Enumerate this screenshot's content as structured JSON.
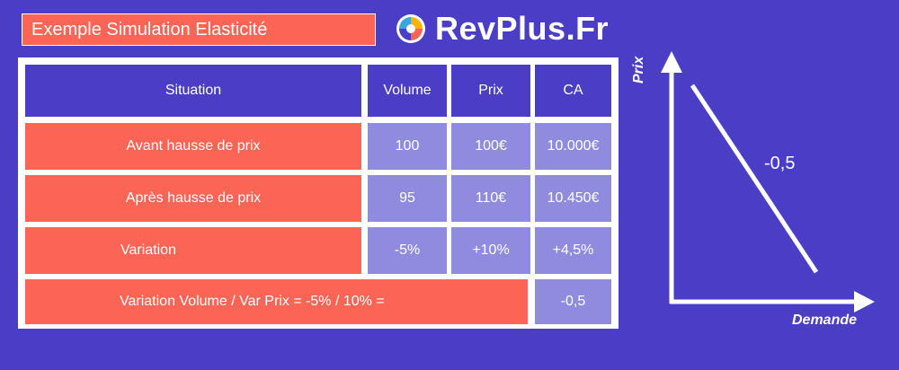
{
  "header": {
    "title": "Exemple Simulation Elasticité",
    "brand": "RevPlus.Fr"
  },
  "table": {
    "columns": [
      "Situation",
      "Volume",
      "Prix",
      "CA"
    ],
    "rows": [
      {
        "situation": "Avant hausse de prix",
        "volume": "100",
        "prix": "100€",
        "ca": "10.000€"
      },
      {
        "situation": "Après hausse de prix",
        "volume": "95",
        "prix": "110€",
        "ca": "10.450€"
      },
      {
        "situation": "Variation",
        "volume": "-5%",
        "prix": "+10%",
        "ca": "+4,5%"
      }
    ],
    "formula": {
      "label": "Variation Volume / Var Prix = -5% / 10% =",
      "result": "-0,5"
    }
  },
  "graph": {
    "y_label": "Prix",
    "x_label": "Demande",
    "slope": "-0,5"
  },
  "colors": {
    "background": "#4a3ec6",
    "accent": "#fa6555",
    "cell": "#8f8bde"
  }
}
